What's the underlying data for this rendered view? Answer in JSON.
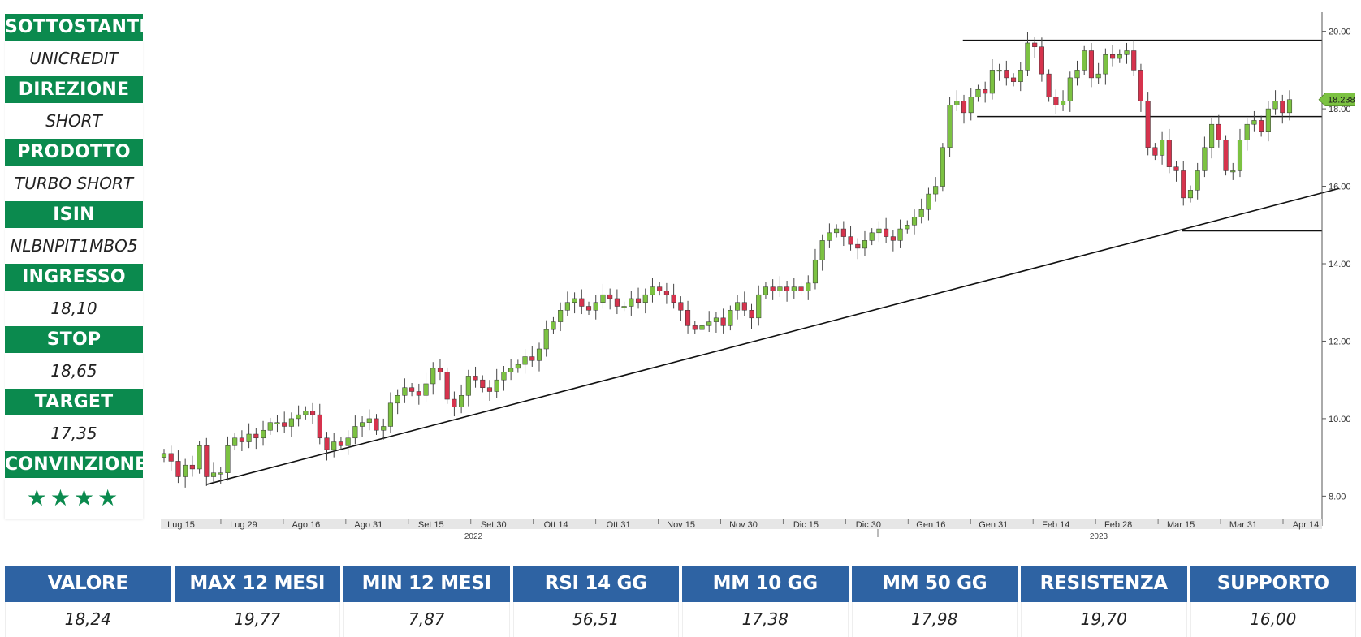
{
  "sidebar": [
    {
      "label": "SOTTOSTANTE",
      "value": "UNICREDIT"
    },
    {
      "label": "DIREZIONE",
      "value": "SHORT"
    },
    {
      "label": "PRODOTTO",
      "value": "TURBO SHORT"
    },
    {
      "label": "ISIN",
      "value": "NLBNPIT1MBO5"
    },
    {
      "label": "INGRESSO",
      "value": "18,10"
    },
    {
      "label": "STOP",
      "value": "18,65"
    },
    {
      "label": "TARGET",
      "value": "17,35"
    },
    {
      "label": "CONVINZIONE",
      "stars": "★★★★"
    }
  ],
  "stats": {
    "headers": [
      "VALORE",
      "MAX 12 MESI",
      "MIN 12 MESI",
      "RSI 14 GG",
      "MM 10 GG",
      "MM 50 GG",
      "RESISTENZA",
      "SUPPORTO"
    ],
    "values": [
      "18,24",
      "19,77",
      "7,87",
      "56,51",
      "17,38",
      "17,98",
      "19,70",
      "16,00"
    ]
  },
  "colors": {
    "green_header": "#0b8a4e",
    "blue_header": "#2e63a3",
    "up": "#7cc242",
    "down": "#d6334d"
  },
  "chart_data": {
    "type": "candlestick",
    "x_ticks": [
      "Lug 15",
      "Lug 29",
      "Ago 16",
      "Ago 31",
      "Set 15",
      "Set 30",
      "Ott 14",
      "Ott 31",
      "Nov 15",
      "Nov 30",
      "Dic 15",
      "Dic 30",
      "Gen 16",
      "Gen 31",
      "Feb 14",
      "Feb 28",
      "Mar 15",
      "Mar 31",
      "Apr 14"
    ],
    "year_labels": [
      "2022",
      "2023"
    ],
    "y_ticks": [
      "8.00",
      "10.00",
      "12.00",
      "14.00",
      "16.00",
      "18.00",
      "20.00"
    ],
    "ylim": [
      7.4,
      20.6
    ],
    "last_price_label": "18.238",
    "last_price": 18.238,
    "closes": [
      9.1,
      8.9,
      8.5,
      8.8,
      8.7,
      9.3,
      8.5,
      8.6,
      8.6,
      9.3,
      9.5,
      9.4,
      9.6,
      9.5,
      9.7,
      9.9,
      9.9,
      9.8,
      10.0,
      10.1,
      10.2,
      10.1,
      9.5,
      9.2,
      9.4,
      9.3,
      9.5,
      9.8,
      9.9,
      10.0,
      9.7,
      9.8,
      10.4,
      10.6,
      10.8,
      10.7,
      10.6,
      10.9,
      11.3,
      11.2,
      10.5,
      10.3,
      10.6,
      11.1,
      11.0,
      10.8,
      10.7,
      11.0,
      11.2,
      11.3,
      11.4,
      11.6,
      11.5,
      11.8,
      12.3,
      12.5,
      12.8,
      13.0,
      13.1,
      12.9,
      12.8,
      13.0,
      13.2,
      13.1,
      12.9,
      12.9,
      13.1,
      13.0,
      13.2,
      13.4,
      13.3,
      13.2,
      13.0,
      12.8,
      12.4,
      12.3,
      12.4,
      12.5,
      12.6,
      12.4,
      12.8,
      13.0,
      12.8,
      12.6,
      13.2,
      13.4,
      13.3,
      13.4,
      13.3,
      13.4,
      13.3,
      13.5,
      14.1,
      14.6,
      14.8,
      14.9,
      14.7,
      14.5,
      14.4,
      14.6,
      14.8,
      14.9,
      14.7,
      14.6,
      14.9,
      15.0,
      15.2,
      15.4,
      15.8,
      16.0,
      17.0,
      18.1,
      18.2,
      17.9,
      18.3,
      18.5,
      18.4,
      19.0,
      19.0,
      18.8,
      18.7,
      19.0,
      19.7,
      19.6,
      18.9,
      18.3,
      18.1,
      18.2,
      18.8,
      19.0,
      19.5,
      18.8,
      18.9,
      19.4,
      19.3,
      19.4,
      19.5,
      19.0,
      18.2,
      17.0,
      16.8,
      17.2,
      16.5,
      16.4,
      15.7,
      15.9,
      16.4,
      17.0,
      17.6,
      17.2,
      16.4,
      16.4,
      17.2,
      17.6,
      17.7,
      17.4,
      18.0,
      18.2,
      17.9,
      18.238
    ],
    "trendline": {
      "start": {
        "index": 6,
        "value": 8.3
      },
      "end": {
        "index": 163,
        "value": 15.8
      }
    },
    "horizontal_levels": [
      19.77,
      17.8,
      14.85
    ]
  }
}
